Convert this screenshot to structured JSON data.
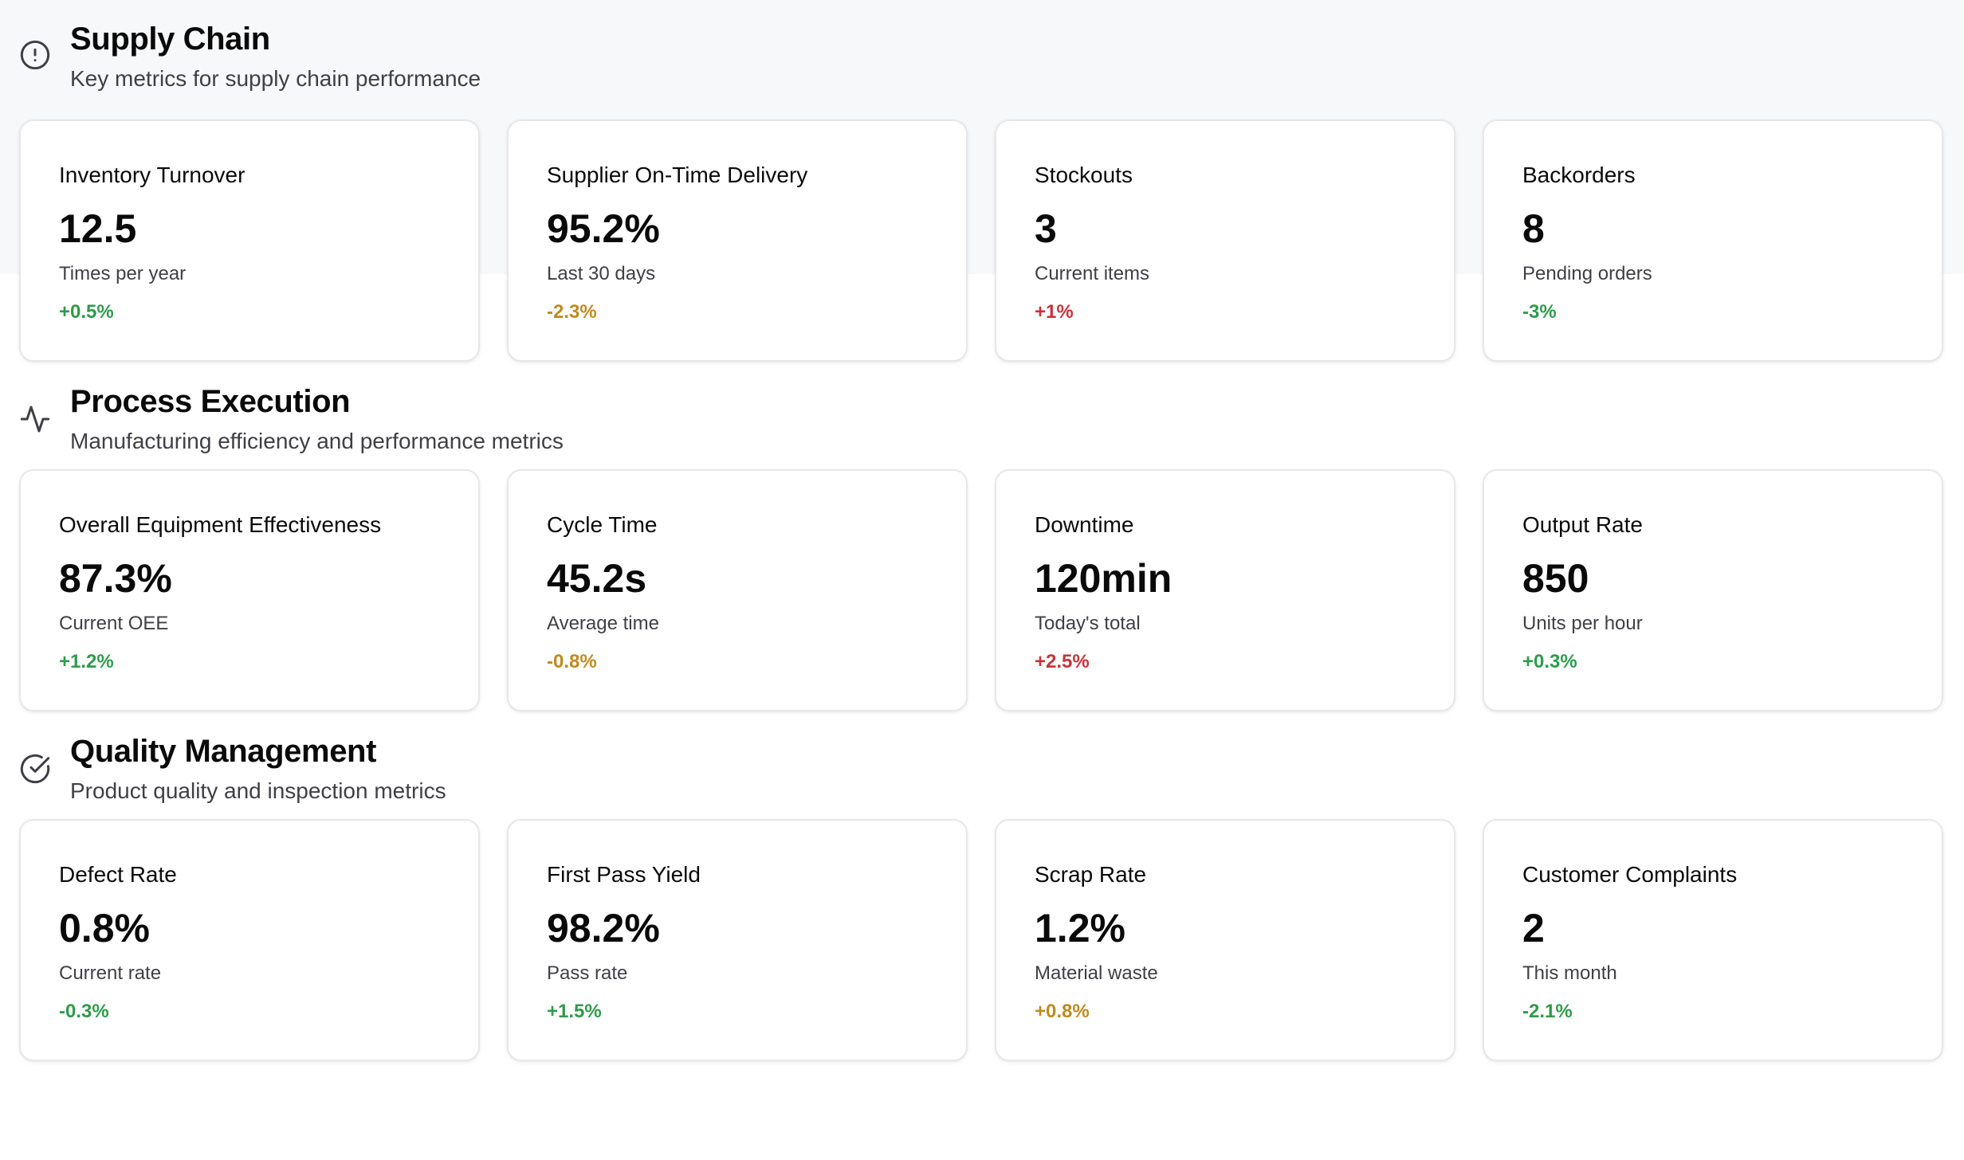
{
  "sections": [
    {
      "icon": "alert-circle-icon",
      "title": "Supply Chain",
      "subtitle": "Key metrics for supply chain performance",
      "cards": [
        {
          "title": "Inventory Turnover",
          "value": "12.5",
          "caption": "Times per year",
          "change": "+0.5%",
          "status": "good"
        },
        {
          "title": "Supplier On-Time Delivery",
          "value": "95.2%",
          "caption": "Last 30 days",
          "change": "-2.3%",
          "status": "warn"
        },
        {
          "title": "Stockouts",
          "value": "3",
          "caption": "Current items",
          "change": "+1%",
          "status": "bad"
        },
        {
          "title": "Backorders",
          "value": "8",
          "caption": "Pending orders",
          "change": "-3%",
          "status": "good"
        }
      ]
    },
    {
      "icon": "activity-icon",
      "title": "Process Execution",
      "subtitle": "Manufacturing efficiency and performance metrics",
      "cards": [
        {
          "title": "Overall Equipment Effectiveness",
          "value": "87.3%",
          "caption": "Current OEE",
          "change": "+1.2%",
          "status": "good"
        },
        {
          "title": "Cycle Time",
          "value": "45.2s",
          "caption": "Average time",
          "change": "-0.8%",
          "status": "warn"
        },
        {
          "title": "Downtime",
          "value": "120min",
          "caption": "Today's total",
          "change": "+2.5%",
          "status": "bad"
        },
        {
          "title": "Output Rate",
          "value": "850",
          "caption": "Units per hour",
          "change": "+0.3%",
          "status": "good"
        }
      ]
    },
    {
      "icon": "check-circle-icon",
      "title": "Quality Management",
      "subtitle": "Product quality and inspection metrics",
      "cards": [
        {
          "title": "Defect Rate",
          "value": "0.8%",
          "caption": "Current rate",
          "change": "-0.3%",
          "status": "good"
        },
        {
          "title": "First Pass Yield",
          "value": "98.2%",
          "caption": "Pass rate",
          "change": "+1.5%",
          "status": "good"
        },
        {
          "title": "Scrap Rate",
          "value": "1.2%",
          "caption": "Material waste",
          "change": "+0.8%",
          "status": "warn"
        },
        {
          "title": "Customer Complaints",
          "value": "2",
          "caption": "This month",
          "change": "-2.1%",
          "status": "good"
        }
      ]
    }
  ],
  "colors": {
    "good": "#2e9b4b",
    "warn": "#c08a1e",
    "bad": "#c9323a",
    "header_band": "#f7f8fa"
  }
}
